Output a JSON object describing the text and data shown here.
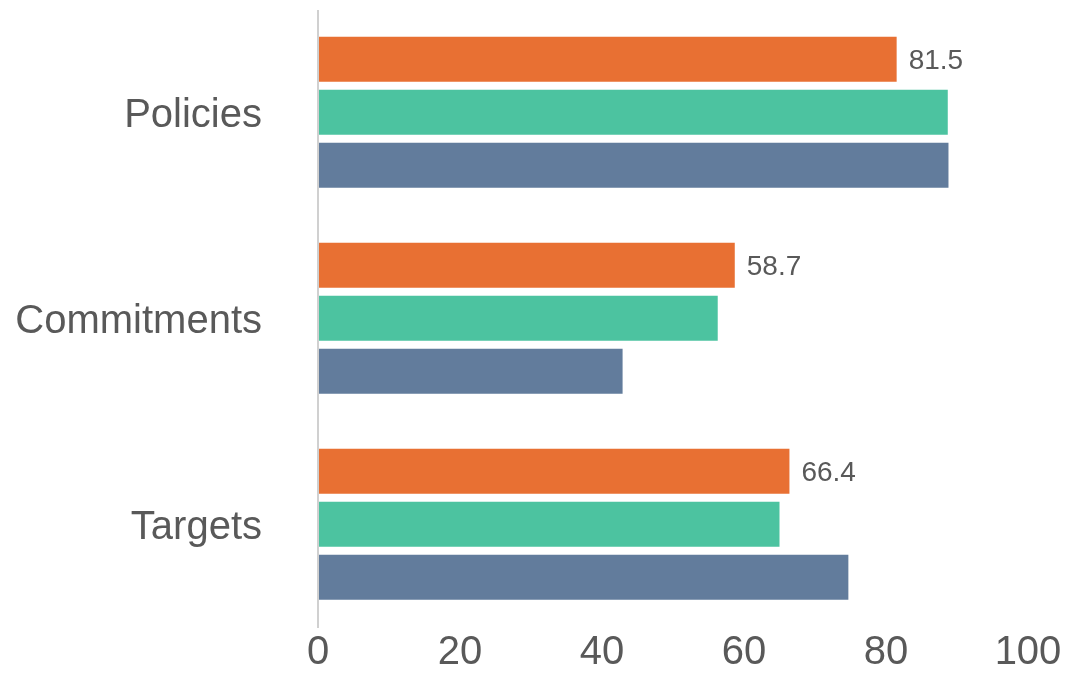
{
  "chart_data": {
    "type": "bar",
    "orientation": "horizontal",
    "categories": [
      "Policies",
      "Commitments",
      "Targets"
    ],
    "series": [
      {
        "color": "#e87033",
        "values": [
          81.5,
          58.7,
          66.4
        ],
        "value_labels": [
          "81.5",
          "58.7",
          "66.4"
        ]
      },
      {
        "color": "#4cc3a0",
        "values": [
          88.7,
          56.3,
          65.0
        ]
      },
      {
        "color": "#627c9c",
        "values": [
          88.8,
          42.9,
          74.7
        ]
      }
    ],
    "xlim": [
      0,
      100
    ],
    "xticks": [
      0,
      20,
      40,
      60,
      80,
      100
    ],
    "grid": false,
    "legend": false
  }
}
